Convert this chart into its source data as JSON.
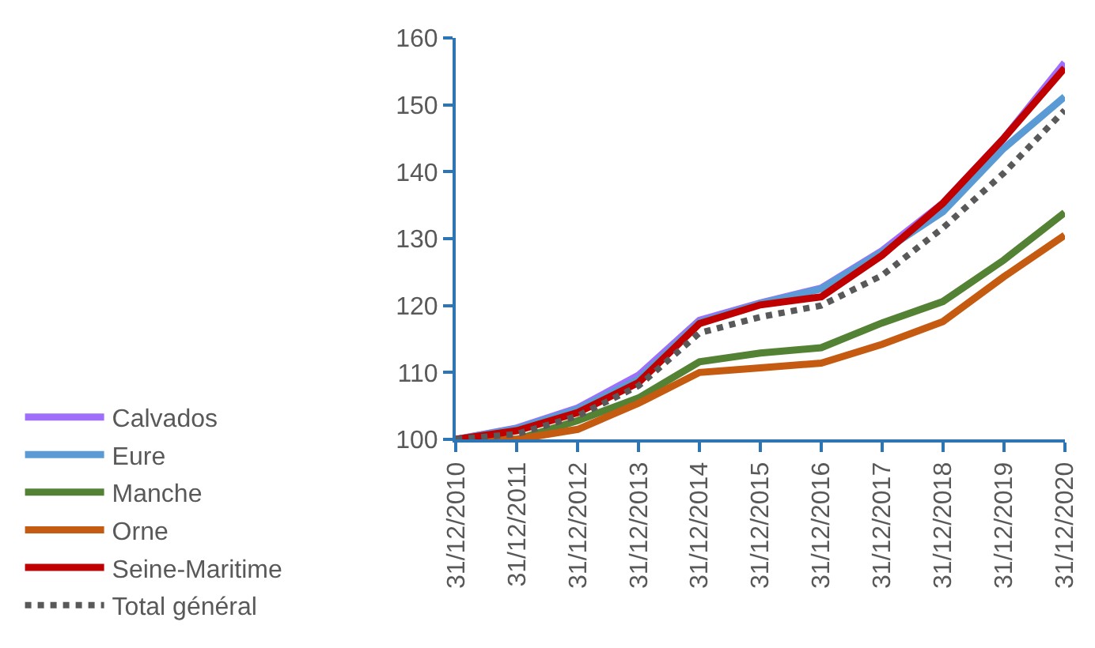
{
  "chart_data": {
    "type": "line",
    "categories": [
      "31/12/2010",
      "31/12/2011",
      "31/12/2012",
      "31/12/2013",
      "31/12/2014",
      "31/12/2015",
      "31/12/2016",
      "31/12/2017",
      "31/12/2018",
      "31/12/2019",
      "31/12/2020"
    ],
    "series": [
      {
        "name": "Calvados",
        "color": "#9f6ffb",
        "values": [
          100,
          101.7,
          104.7,
          109.6,
          117.8,
          120.4,
          122.6,
          128.2,
          135.3,
          145,
          156.3
        ]
      },
      {
        "name": "Eure",
        "color": "#5b9bd5",
        "values": [
          100,
          101.6,
          104.5,
          109,
          117.5,
          120.3,
          122.5,
          128,
          134,
          143.5,
          151.2
        ]
      },
      {
        "name": "Manche",
        "color": "#548235",
        "values": [
          100,
          100,
          102.8,
          106.2,
          111.6,
          112.9,
          113.7,
          117.4,
          120.6,
          126.8,
          133.9
        ]
      },
      {
        "name": "Orne",
        "color": "#c55a11",
        "values": [
          100,
          100,
          101.5,
          105.4,
          110,
          110.7,
          111.4,
          114.2,
          117.6,
          124.3,
          130.5
        ]
      },
      {
        "name": "Seine-Maritime",
        "color": "#c00000",
        "values": [
          100,
          101.3,
          104,
          108.5,
          117.3,
          120.1,
          121.3,
          127.5,
          135.3,
          145,
          155.5
        ]
      },
      {
        "name": "Total général",
        "color": "#595959",
        "line_style": "dotted",
        "values": [
          100,
          100.8,
          103.5,
          108,
          115.9,
          118.3,
          120,
          124.5,
          131.6,
          139.8,
          149.2
        ]
      }
    ],
    "ylim": [
      100,
      160
    ],
    "yticks": [
      100,
      110,
      120,
      130,
      140,
      150,
      160
    ],
    "legend": "left"
  }
}
